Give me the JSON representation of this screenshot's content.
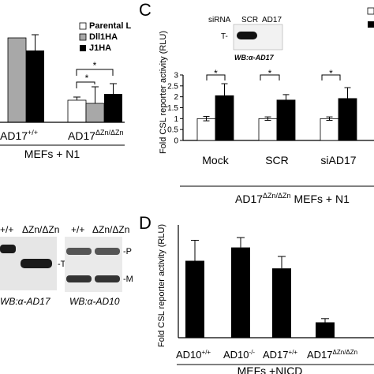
{
  "panel_c": {
    "letter": "C",
    "ylabel_a": "Fold CSL reporter activity (RLU)",
    "inset": {
      "row_title": "siRNA",
      "lanes": [
        "SCR",
        "AD17"
      ],
      "band_label": "T-",
      "caption": "WB:α-AD17"
    },
    "caption_main": "AD17",
    "caption_sup": "ΔZn/ΔZn",
    "caption_tail": " MEFs + N1",
    "sig": [
      "*",
      "*",
      "*"
    ]
  },
  "panel_d": {
    "letter": "D",
    "ylabel_a": "Fold CSL reporter activity (RLU)",
    "caption": "MEFs +NICD",
    "category_labels": [
      {
        "base": "AD10",
        "sup": "+/+"
      },
      {
        "base": "AD10",
        "sup": "-/-"
      },
      {
        "base": "AD17",
        "sup": "+/+"
      },
      {
        "base": "AD17",
        "sup": "ΔZn/ΔZn"
      }
    ]
  },
  "panel_b": {
    "legend": [
      "Parental L",
      "Dll1HA",
      "J1HA"
    ],
    "group_labels": [
      {
        "base": "AD17",
        "sup": "+/+"
      },
      {
        "base": "AD17",
        "sup": "ΔZn/ΔZn"
      }
    ],
    "caption": "MEFs + N1",
    "sig": [
      "*",
      "*"
    ]
  },
  "panel_blot": {
    "lanes_left": [
      "+/+",
      "ΔZn/ΔZn"
    ],
    "lanes_right": [
      "+/+",
      "ΔZn/ΔZn"
    ],
    "side_labels_right": [
      "-P",
      "-M"
    ],
    "side_label_left": "-T",
    "caption_left": "WB:α-AD17",
    "caption_right": "WB:α-AD10"
  },
  "chart_data": [
    {
      "type": "bar",
      "panel": "C",
      "categories": [
        "Mock",
        "SCR",
        "siAD17"
      ],
      "series": [
        {
          "color": "#ffffff",
          "values": [
            1.0,
            1.0,
            1.0
          ],
          "errors": [
            0.1,
            0.08,
            0.08
          ]
        },
        {
          "color": "#000000",
          "values": [
            2.05,
            1.85,
            1.92
          ],
          "errors": [
            0.55,
            0.25,
            0.5
          ]
        }
      ],
      "ylabel": "Fold CSL reporter activity (RLU)",
      "ylim": [
        0,
        3
      ]
    },
    {
      "type": "bar",
      "panel": "D",
      "categories": [
        "AD10+/+",
        "AD10-/-",
        "AD17+/+",
        "AD17ΔZn/ΔZn"
      ],
      "values": [
        375,
        440,
        338,
        75
      ],
      "errors": [
        100,
        48,
        58,
        18
      ],
      "ylabel": "Fold CSL reporter activity (RLU)",
      "ylim": [
        0,
        550
      ]
    }
  ]
}
